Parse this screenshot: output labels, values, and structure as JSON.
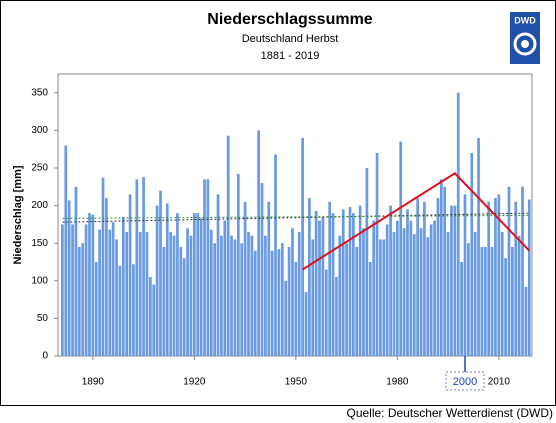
{
  "chart_data": {
    "type": "bar",
    "title": "Niederschlagssumme",
    "subtitle": "Deutschland Herbst",
    "period": "1881 - 2019",
    "y_label": "Niederschlag [mm]",
    "source": "Quelle: Deutscher Wetterdienst (DWD)",
    "logo_text": "DWD",
    "color": "#6a9be0",
    "x": [
      1881,
      1882,
      1883,
      1884,
      1885,
      1886,
      1887,
      1888,
      1889,
      1890,
      1891,
      1892,
      1893,
      1894,
      1895,
      1896,
      1897,
      1898,
      1899,
      1900,
      1901,
      1902,
      1903,
      1904,
      1905,
      1906,
      1907,
      1908,
      1909,
      1910,
      1911,
      1912,
      1913,
      1914,
      1915,
      1916,
      1917,
      1918,
      1919,
      1920,
      1921,
      1922,
      1923,
      1924,
      1925,
      1926,
      1927,
      1928,
      1929,
      1930,
      1931,
      1932,
      1933,
      1934,
      1935,
      1936,
      1937,
      1938,
      1939,
      1940,
      1941,
      1942,
      1943,
      1944,
      1945,
      1946,
      1947,
      1948,
      1949,
      1950,
      1951,
      1952,
      1953,
      1954,
      1955,
      1956,
      1957,
      1958,
      1959,
      1960,
      1961,
      1962,
      1963,
      1964,
      1965,
      1966,
      1967,
      1968,
      1969,
      1970,
      1971,
      1972,
      1973,
      1974,
      1975,
      1976,
      1977,
      1978,
      1979,
      1980,
      1981,
      1982,
      1983,
      1984,
      1985,
      1986,
      1987,
      1988,
      1989,
      1990,
      1991,
      1992,
      1993,
      1994,
      1995,
      1996,
      1997,
      1998,
      1999,
      2000,
      2001,
      2002,
      2003,
      2004,
      2005,
      2006,
      2007,
      2008,
      2009,
      2010,
      2011,
      2012,
      2013,
      2014,
      2015,
      2016,
      2017,
      2018,
      2019
    ],
    "values": [
      175,
      280,
      207,
      175,
      225,
      145,
      150,
      175,
      190,
      188,
      125,
      168,
      237,
      210,
      168,
      178,
      155,
      120,
      185,
      165,
      215,
      122,
      235,
      165,
      238,
      165,
      105,
      95,
      200,
      220,
      145,
      203,
      165,
      160,
      190,
      145,
      130,
      170,
      160,
      190,
      190,
      183,
      235,
      235,
      168,
      150,
      215,
      160,
      180,
      293,
      160,
      155,
      242,
      150,
      205,
      165,
      160,
      140,
      300,
      230,
      160,
      205,
      140,
      268,
      142,
      150,
      100,
      145,
      170,
      125,
      165,
      290,
      85,
      210,
      155,
      193,
      180,
      185,
      115,
      205,
      190,
      105,
      160,
      195,
      150,
      198,
      190,
      145,
      200,
      170,
      250,
      125,
      180,
      270,
      155,
      155,
      175,
      200,
      165,
      180,
      285,
      170,
      195,
      180,
      162,
      210,
      170,
      205,
      158,
      175,
      180,
      210,
      235,
      225,
      165,
      200,
      200,
      350,
      125,
      215,
      150,
      270,
      165,
      290,
      145,
      145,
      205,
      145,
      210,
      215,
      165,
      130,
      225,
      145,
      205,
      160,
      225,
      92,
      208
    ],
    "xlim": [
      1879.7,
      2019.8
    ],
    "xticks": [
      1890,
      1920,
      1950,
      1980,
      2010
    ],
    "ylim": [
      0,
      375
    ],
    "yticks": [
      0,
      50,
      100,
      150,
      200,
      250,
      300,
      350
    ],
    "trend_lines": [
      {
        "color": "#333333",
        "x": [
          1881,
          2019
        ],
        "values": [
          178,
          190
        ]
      },
      {
        "color": "#3a8a3a",
        "x": [
          1881,
          2019
        ],
        "values": [
          183,
          187
        ]
      }
    ],
    "annotation_line": {
      "color": "#e0101a",
      "x": [
        1952,
        1997,
        2019
      ],
      "values": [
        115,
        243,
        140
      ]
    },
    "highlight_year": 2000
  }
}
